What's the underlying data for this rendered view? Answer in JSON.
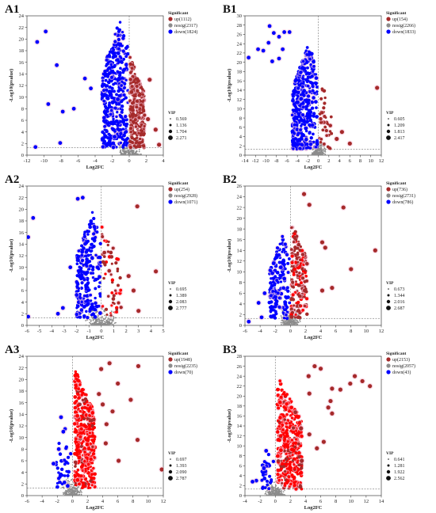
{
  "colors": {
    "up": "#a52a2a",
    "up_dense": "#ff0000",
    "nosig": "#8c8c8c",
    "down": "#0000ff",
    "halo": "#f7c6dc"
  },
  "chart_data": [
    {
      "panel": "A1",
      "type": "scatter",
      "xlabel": "Log2FC",
      "ylabel": "-Log10(pvalue)",
      "xlim": [
        -12,
        4
      ],
      "ylim": [
        0,
        24
      ],
      "xticks": [
        -12,
        -10,
        -8,
        -6,
        -4,
        -2,
        0,
        2,
        4
      ],
      "yticks": [
        0,
        2,
        4,
        6,
        8,
        10,
        12,
        14,
        16,
        18,
        20,
        22,
        24
      ],
      "threshold_y": 1.3,
      "threshold_x": 0,
      "legend_title": "Significant",
      "series": [
        {
          "key": "up",
          "name": "up(1112)",
          "count": 1112
        },
        {
          "key": "nosig",
          "name": "nosig(2317)",
          "count": 2317
        },
        {
          "key": "down",
          "name": "down(1824)",
          "count": 1824
        }
      ],
      "vip_title": "VIP",
      "vip_values": [
        "0.569",
        "1.136",
        "1.704",
        "2.271"
      ],
      "cloud": {
        "up": {
          "xr": [
            0.1,
            1.8
          ],
          "yr": [
            1.3,
            17
          ]
        },
        "down": {
          "xr": [
            -3.2,
            -0.1
          ],
          "yr": [
            1.3,
            23.5
          ]
        }
      },
      "outliers": {
        "down": [
          [
            -9.8,
            21.3
          ],
          [
            -10.8,
            19.5
          ],
          [
            -8.5,
            15.5
          ],
          [
            -9.5,
            8.8
          ],
          [
            -7.8,
            7.5
          ],
          [
            -6.5,
            8
          ],
          [
            -5.2,
            13.2
          ],
          [
            -4.5,
            11.5
          ],
          [
            -8.1,
            2.1
          ],
          [
            -11,
            1.4
          ]
        ],
        "up": [
          [
            3.1,
            4.4
          ],
          [
            2.4,
            13
          ],
          [
            2.2,
            6.2
          ],
          [
            3.5,
            1.8
          ]
        ]
      }
    },
    {
      "panel": "B1",
      "type": "scatter",
      "xlabel": "Log2FC",
      "ylabel": "-Log10(pvalue)",
      "xlim": [
        -14,
        12
      ],
      "ylim": [
        0,
        30
      ],
      "xticks": [
        -14,
        -12,
        -10,
        -8,
        -6,
        -4,
        -2,
        0,
        2,
        4,
        6,
        8,
        10,
        12
      ],
      "yticks": [
        0,
        2,
        4,
        6,
        8,
        10,
        12,
        14,
        16,
        18,
        20,
        22,
        24,
        26,
        28,
        30
      ],
      "threshold_y": 1.3,
      "threshold_x": 0,
      "legend_title": "Significant",
      "series": [
        {
          "key": "up",
          "name": "up(154)",
          "count": 154
        },
        {
          "key": "nosig",
          "name": "nosig(2266)",
          "count": 2266
        },
        {
          "key": "down",
          "name": "down(1833)",
          "count": 1833
        }
      ],
      "vip_title": "VIP",
      "vip_values": [
        "0.605",
        "1.209",
        "1.813",
        "2.417"
      ],
      "cloud": {
        "up": {
          "xr": [
            0.2,
            2.5
          ],
          "yr": [
            1.3,
            17
          ]
        },
        "down": {
          "xr": [
            -5,
            -0.2
          ],
          "yr": [
            1.3,
            24
          ]
        }
      },
      "outliers": {
        "down": [
          [
            -9.3,
            27.8
          ],
          [
            -8.5,
            26.3
          ],
          [
            -7.5,
            25.5
          ],
          [
            -6.5,
            26.5
          ],
          [
            -5.5,
            26.5
          ],
          [
            -13.3,
            21
          ],
          [
            -11.5,
            22.8
          ],
          [
            -10.5,
            22.5
          ],
          [
            -9.5,
            24.2
          ],
          [
            -8.8,
            20.2
          ],
          [
            -7.5,
            20.8
          ],
          [
            -6.8,
            22.8
          ]
        ],
        "up": [
          [
            11.2,
            14.5
          ],
          [
            6,
            2.5
          ],
          [
            4.5,
            5
          ],
          [
            3.5,
            3.5
          ]
        ]
      }
    },
    {
      "panel": "A2",
      "type": "scatter",
      "xlabel": "Log2FC",
      "ylabel": "-Log10(pvalue)",
      "xlim": [
        -6,
        5
      ],
      "ylim": [
        0,
        24
      ],
      "xticks": [
        -6,
        -5,
        -4,
        -3,
        -2,
        -1,
        0,
        1,
        2,
        3,
        4,
        5
      ],
      "yticks": [
        0,
        2,
        4,
        6,
        8,
        10,
        12,
        14,
        16,
        18,
        20,
        22,
        24
      ],
      "threshold_y": 1.3,
      "threshold_x": 0,
      "legend_title": "Significant",
      "series": [
        {
          "key": "up",
          "name": "up(254)",
          "count": 254
        },
        {
          "key": "nosig",
          "name": "nosig(2928)",
          "count": 2928
        },
        {
          "key": "down",
          "name": "down(1071)",
          "count": 1071
        }
      ],
      "vip_title": "VIP",
      "vip_values": [
        "0.695",
        "1.389",
        "2.083",
        "2.777"
      ],
      "cloud": {
        "up": {
          "xr": [
            0.05,
            1.6
          ],
          "yr": [
            1.3,
            17
          ]
        },
        "down": {
          "xr": [
            -2,
            -0.05
          ],
          "yr": [
            1.3,
            20
          ]
        }
      },
      "outliers": {
        "down": [
          [
            -5.9,
            15.2
          ],
          [
            -5.5,
            18.5
          ],
          [
            -3.1,
            3
          ],
          [
            -3.5,
            2
          ],
          [
            -1.9,
            21.8
          ],
          [
            -1.5,
            22
          ],
          [
            -2.5,
            10
          ],
          [
            -5.9,
            1.5
          ]
        ],
        "up": [
          [
            2.9,
            20.5
          ],
          [
            4.4,
            9.3
          ],
          [
            2.6,
            6
          ],
          [
            3,
            2.5
          ],
          [
            2.2,
            8.5
          ]
        ]
      }
    },
    {
      "panel": "B2",
      "type": "scatter",
      "xlabel": "Log2FC",
      "ylabel": "-Log10(pvalue)",
      "xlim": [
        -6,
        12
      ],
      "ylim": [
        0,
        26
      ],
      "xticks": [
        -6,
        -4,
        -2,
        0,
        2,
        4,
        6,
        8,
        10,
        12
      ],
      "yticks": [
        0,
        2,
        4,
        6,
        8,
        10,
        12,
        14,
        16,
        18,
        20,
        22,
        24,
        26
      ],
      "threshold_y": 1.3,
      "threshold_x": 0,
      "legend_title": "Significant",
      "series": [
        {
          "key": "up",
          "name": "up(736)",
          "count": 736
        },
        {
          "key": "nosig",
          "name": "nosig(2731)",
          "count": 2731
        },
        {
          "key": "down",
          "name": "down(786)",
          "count": 786
        }
      ],
      "vip_title": "VIP",
      "vip_values": [
        "0.673",
        "1.344",
        "2.016",
        "2.687"
      ],
      "cloud": {
        "up": {
          "xr": [
            0.1,
            2.2
          ],
          "yr": [
            1.3,
            20
          ]
        },
        "down": {
          "xr": [
            -2.8,
            -0.1
          ],
          "yr": [
            1.3,
            17
          ]
        }
      },
      "outliers": {
        "down": [
          [
            -4.2,
            4.2
          ],
          [
            -3.8,
            1.5
          ],
          [
            -3.4,
            6
          ],
          [
            -5.5,
            0.7
          ]
        ],
        "up": [
          [
            7,
            22
          ],
          [
            11.2,
            14
          ],
          [
            8,
            10.5
          ],
          [
            4.6,
            14.5
          ],
          [
            4.2,
            15.5
          ],
          [
            5.5,
            7
          ],
          [
            4.2,
            6.5
          ],
          [
            1.8,
            24.5
          ],
          [
            2.5,
            22.5
          ]
        ]
      }
    },
    {
      "panel": "A3",
      "type": "scatter",
      "xlabel": "Log2FC",
      "ylabel": "-Log10(pvalue)",
      "xlim": [
        -6,
        12
      ],
      "ylim": [
        0,
        24
      ],
      "xticks": [
        -6,
        -4,
        -2,
        0,
        2,
        4,
        6,
        8,
        10,
        12
      ],
      "yticks": [
        0,
        2,
        4,
        6,
        8,
        10,
        12,
        14,
        16,
        18,
        20,
        22,
        24
      ],
      "threshold_y": 1.3,
      "threshold_x": 0,
      "legend_title": "Significant",
      "series": [
        {
          "key": "up",
          "name": "up(1948)",
          "count": 1948
        },
        {
          "key": "nosig",
          "name": "nosig(2235)",
          "count": 2235
        },
        {
          "key": "down",
          "name": "down(70)",
          "count": 70
        }
      ],
      "vip_title": "VIP",
      "vip_values": [
        "0.697",
        "1.393",
        "2.090",
        "2.787"
      ],
      "cloud": {
        "up": {
          "xr": [
            0.3,
            3
          ],
          "yr": [
            1.3,
            22
          ]
        },
        "down": {
          "xr": [
            -2.2,
            -0.2
          ],
          "yr": [
            1.3,
            12
          ]
        }
      },
      "outliers": {
        "down": [
          [
            -1.5,
            13.5
          ],
          [
            -1.2,
            11
          ],
          [
            -2.5,
            5.5
          ],
          [
            -1.8,
            8
          ]
        ],
        "up": [
          [
            11.8,
            4.5
          ],
          [
            8.7,
            22.3
          ],
          [
            4.9,
            22.8
          ],
          [
            6,
            19.3
          ],
          [
            7.7,
            16.5
          ],
          [
            3.8,
            21.8
          ],
          [
            5.3,
            14.5
          ],
          [
            4,
            15.7
          ],
          [
            6.1,
            6
          ],
          [
            8.6,
            9.6
          ],
          [
            4.5,
            12.3
          ],
          [
            3.5,
            17.5
          ],
          [
            4.4,
            9
          ]
        ]
      }
    },
    {
      "panel": "B3",
      "type": "scatter",
      "xlabel": "Log2FC",
      "ylabel": "-Log10(pvalue)",
      "xlim": [
        -4,
        14
      ],
      "ylim": [
        0,
        28
      ],
      "xticks": [
        -4,
        -2,
        0,
        2,
        4,
        6,
        8,
        10,
        12,
        14
      ],
      "yticks": [
        0,
        2,
        4,
        6,
        8,
        10,
        12,
        14,
        16,
        18,
        20,
        22,
        24,
        26,
        28
      ],
      "threshold_y": 1.3,
      "threshold_x": 0,
      "legend_title": "Significant",
      "series": [
        {
          "key": "up",
          "name": "up(2153)",
          "count": 2153
        },
        {
          "key": "nosig",
          "name": "nosig(2057)",
          "count": 2057
        },
        {
          "key": "down",
          "name": "down(43)",
          "count": 43
        }
      ],
      "vip_title": "VIP",
      "vip_values": [
        "0.641",
        "1.281",
        "1.922",
        "2.562"
      ],
      "cloud": {
        "up": {
          "xr": [
            0.3,
            3.5
          ],
          "yr": [
            1.3,
            24
          ]
        },
        "down": {
          "xr": [
            -1.8,
            -0.2
          ],
          "yr": [
            1.3,
            9
          ]
        }
      },
      "outliers": {
        "down": [
          [
            -1.5,
            5.5
          ],
          [
            -2.5,
            3
          ],
          [
            -1.2,
            9
          ],
          [
            -3,
            2.8
          ]
        ],
        "up": [
          [
            10.5,
            24
          ],
          [
            12.5,
            22
          ],
          [
            11.5,
            23
          ],
          [
            9.9,
            22.5
          ],
          [
            8.6,
            21.3
          ],
          [
            7.5,
            21.5
          ],
          [
            7.3,
            19
          ],
          [
            7.5,
            16.5
          ],
          [
            7,
            17.7
          ],
          [
            6,
            25.5
          ],
          [
            5.2,
            26
          ],
          [
            4.4,
            24
          ],
          [
            4.5,
            20.5
          ],
          [
            3.4,
            13.5
          ],
          [
            5.5,
            9.5
          ],
          [
            6.4,
            10.8
          ],
          [
            4.5,
            12.3
          ],
          [
            3.5,
            7
          ]
        ]
      }
    }
  ]
}
